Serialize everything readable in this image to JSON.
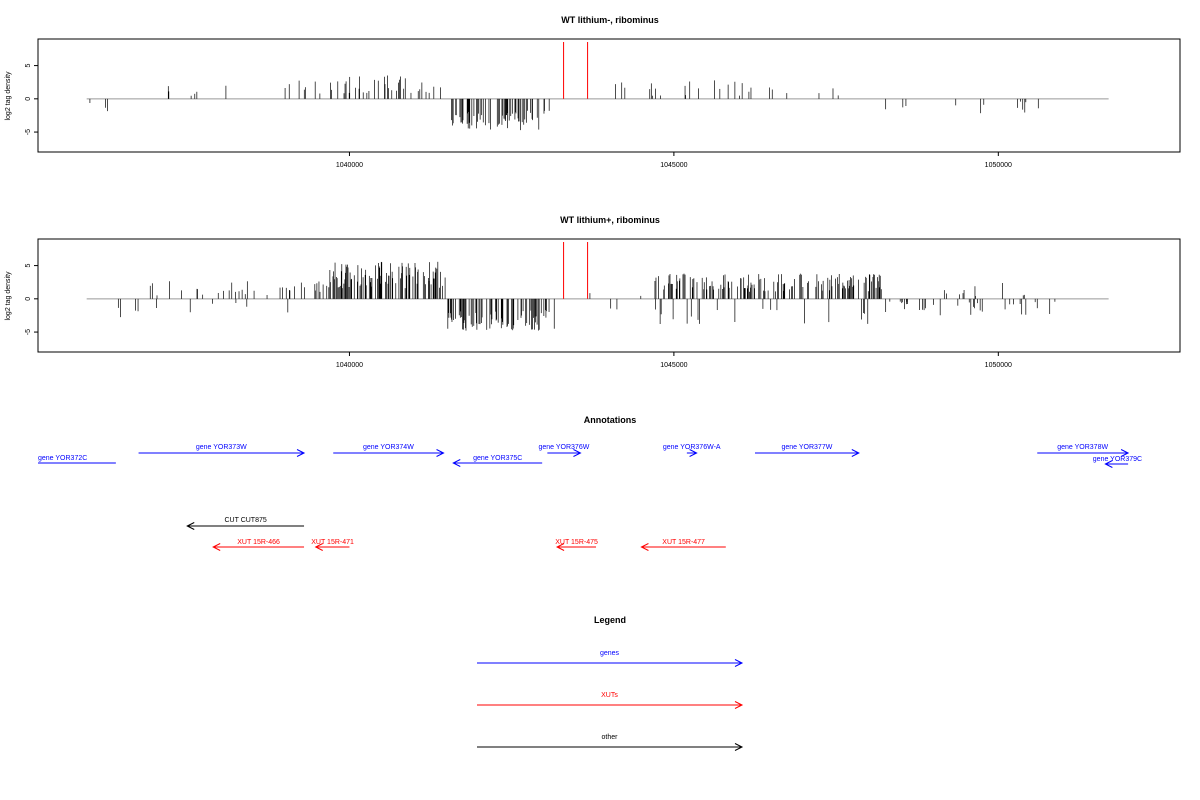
{
  "chart_data": [
    {
      "type": "bar",
      "title": "WT lithium-, ribominus",
      "xlabel": "",
      "ylabel": "log2 tag density",
      "xlim": [
        1035200,
        1052800
      ],
      "ylim": [
        -8,
        9
      ],
      "yticks": [
        -5,
        0,
        5
      ],
      "ytick_labels": [
        "-5",
        "0",
        "5"
      ],
      "xticks": [
        1040000,
        1045000,
        1050000
      ],
      "xtick_labels": [
        "1040000",
        "1045000",
        "1050000"
      ],
      "marker_positions": [
        1043300,
        1043670
      ],
      "marker_color": "#ff0000",
      "bar_color": "#000000",
      "baseline_color": "#999999",
      "regions": [
        {
          "start": 1036000,
          "end": 1036700,
          "mean": -1.4,
          "spread": 0.8,
          "density": 0.03
        },
        {
          "start": 1037000,
          "end": 1039600,
          "mean": 1.5,
          "spread": 1.3,
          "density": 0.035
        },
        {
          "start": 1039700,
          "end": 1041450,
          "mean": 2.2,
          "spread": 1.6,
          "density": 0.22
        },
        {
          "start": 1041550,
          "end": 1043100,
          "mean": -3.2,
          "spread": 1.6,
          "density": 0.32
        },
        {
          "start": 1044100,
          "end": 1048000,
          "mean": 1.5,
          "spread": 1.3,
          "density": 0.045
        },
        {
          "start": 1048000,
          "end": 1050900,
          "mean": -1.2,
          "spread": 1.1,
          "density": 0.035
        }
      ]
    },
    {
      "type": "bar",
      "title": "WT lithium+, ribominus",
      "xlabel": "",
      "ylabel": "log2 tag density",
      "xlim": [
        1035200,
        1052800
      ],
      "ylim": [
        -8,
        9
      ],
      "yticks": [
        -5,
        0,
        5
      ],
      "ytick_labels": [
        "-5",
        "0",
        "5"
      ],
      "xticks": [
        1040000,
        1045000,
        1050000
      ],
      "xtick_labels": [
        "1040000",
        "1045000",
        "1050000"
      ],
      "marker_positions": [
        1043300,
        1043670
      ],
      "marker_color": "#ff0000",
      "bar_color": "#000000",
      "baseline_color": "#999999",
      "regions": [
        {
          "start": 1035950,
          "end": 1036800,
          "mean": -1.6,
          "spread": 1.2,
          "density": 0.05
        },
        {
          "start": 1036850,
          "end": 1039600,
          "mean": 1.5,
          "spread": 1.2,
          "density": 0.09,
          "neg_fraction": 0.22
        },
        {
          "start": 1039650,
          "end": 1041500,
          "mean": 3.6,
          "spread": 2.0,
          "density": 0.42
        },
        {
          "start": 1041500,
          "end": 1043200,
          "mean": -3.3,
          "spread": 1.6,
          "density": 0.36
        },
        {
          "start": 1043250,
          "end": 1044700,
          "mean": -0.8,
          "spread": 0.9,
          "density": 0.04,
          "neg_fraction": 0.5
        },
        {
          "start": 1044700,
          "end": 1048200,
          "mean": 2.4,
          "spread": 1.4,
          "density": 0.32,
          "neg_fraction": 0.18
        },
        {
          "start": 1048200,
          "end": 1050900,
          "mean": -1.3,
          "spread": 1.2,
          "density": 0.12,
          "neg_fraction": 0.25
        }
      ]
    }
  ],
  "annotations": {
    "title": "Annotations",
    "xlim": [
      1035200,
      1052800
    ],
    "features": [
      {
        "label": "gene YOR372C",
        "start": 1035200,
        "end": 1036400,
        "strand": "-",
        "row": 0,
        "color": "#0000ff",
        "arrow": false
      },
      {
        "label": "gene YOR373W",
        "start": 1036750,
        "end": 1039300,
        "strand": "+",
        "row": 1,
        "color": "#0000ff"
      },
      {
        "label": "gene YOR374W",
        "start": 1039750,
        "end": 1041450,
        "strand": "+",
        "row": 1,
        "color": "#0000ff"
      },
      {
        "label": "gene YOR375C",
        "start": 1041600,
        "end": 1042970,
        "strand": "-",
        "row": 2,
        "color": "#0000ff"
      },
      {
        "label": "gene YOR376W",
        "start": 1043050,
        "end": 1043560,
        "strand": "+",
        "row": 1,
        "color": "#0000ff"
      },
      {
        "label": "gene YOR376W-A",
        "start": 1045200,
        "end": 1045350,
        "strand": "+",
        "row": 1,
        "color": "#0000ff"
      },
      {
        "label": "gene YOR377W",
        "start": 1046250,
        "end": 1047850,
        "strand": "+",
        "row": 1,
        "color": "#0000ff"
      },
      {
        "label": "gene YOR378W",
        "start": 1050600,
        "end": 1052000,
        "strand": "+",
        "row": 1,
        "color": "#0000ff"
      },
      {
        "label": "gene YOR379C",
        "start": 1051650,
        "end": 1052000,
        "strand": "-",
        "row": 3,
        "color": "#0000ff"
      },
      {
        "label": "CUT CUT875",
        "start": 1037500,
        "end": 1039300,
        "strand": "-",
        "row": 4,
        "color": "#000000"
      },
      {
        "label": "XUT 15R-466",
        "start": 1037900,
        "end": 1039300,
        "strand": "-",
        "row": 5,
        "color": "#ff0000"
      },
      {
        "label": "XUT 15R-471",
        "start": 1039480,
        "end": 1040000,
        "strand": "-",
        "row": 5,
        "color": "#ff0000"
      },
      {
        "label": "XUT 15R-475",
        "start": 1043200,
        "end": 1043800,
        "strand": "-",
        "row": 5,
        "color": "#ff0000"
      },
      {
        "label": "XUT 15R-477",
        "start": 1044500,
        "end": 1045800,
        "strand": "-",
        "row": 5,
        "color": "#ff0000"
      }
    ]
  },
  "legend": {
    "title": "Legend",
    "items": [
      {
        "label": "genes",
        "color": "#0000ff"
      },
      {
        "label": "XUTs",
        "color": "#ff0000"
      },
      {
        "label": "other",
        "color": "#000000"
      }
    ]
  }
}
